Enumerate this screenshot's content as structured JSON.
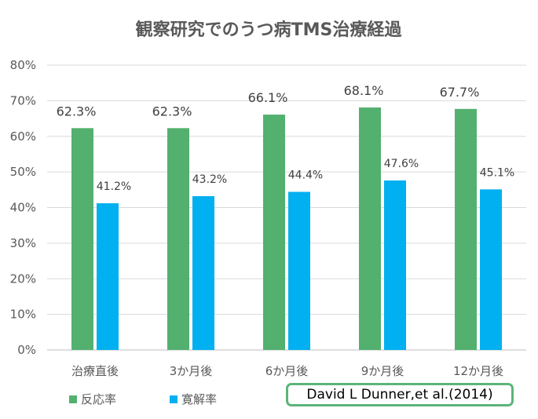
{
  "chart_data": {
    "type": "bar",
    "title": "観察研究でのうつ病TMS治療経過",
    "categories": [
      "治療直後",
      "3か月後",
      "6か月後",
      "9か月後",
      "12か月後"
    ],
    "series": [
      {
        "name": "反応率",
        "color": "#53b06f",
        "values": [
          62.3,
          62.3,
          66.1,
          68.1,
          67.7
        ],
        "labels": [
          "62.3%",
          "62.3%",
          "66.1%",
          "68.1%",
          "67.7%"
        ]
      },
      {
        "name": "寛解率",
        "color": "#00b0f0",
        "values": [
          41.2,
          43.2,
          44.4,
          47.6,
          45.1
        ],
        "labels": [
          "41.2%",
          "43.2%",
          "44.4%",
          "47.6%",
          "45.1%"
        ]
      }
    ],
    "yticks": [
      "0%",
      "10%",
      "20%",
      "30%",
      "40%",
      "50%",
      "60%",
      "70%",
      "80%"
    ],
    "ylim": [
      0,
      80
    ],
    "grid": true,
    "legend": "bottom-left"
  },
  "citation": "David L Dunner,et al.(2014)"
}
